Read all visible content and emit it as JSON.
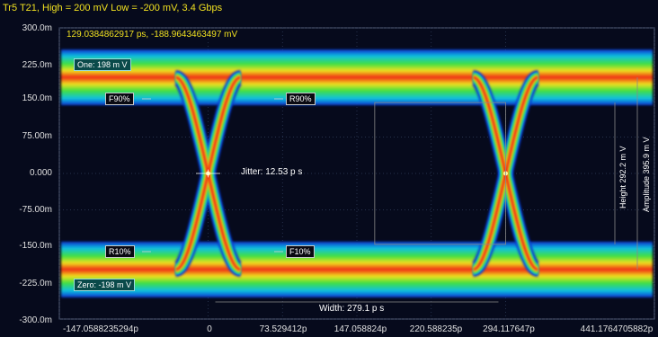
{
  "header": {
    "title": "Tr5 T21, High = 200 mV Low = -200 mV, 3.4 Gbps"
  },
  "cursor_readout": "129.0384862917 ps, -188.9643463497 mV",
  "y_ticks": [
    "300.0m",
    "225.0m",
    "150.0m",
    "75.00m",
    "0.000",
    "-75.00m",
    "-150.0m",
    "-225.0m",
    "-300.0m"
  ],
  "x_ticks": [
    "-147.0588235294p",
    "0",
    "73.529412p",
    "147.058824p",
    "220.588235p",
    "294.117647p",
    "441.1764705882p"
  ],
  "markers": {
    "one": "One: 198 m V",
    "zero": "Zero: -198 m V",
    "f90": "F90%",
    "r90": "R90%",
    "r10": "R10%",
    "f10": "F10%"
  },
  "measurements": {
    "jitter": "Jitter: 12.53 p s",
    "width": "Width: 279.1 p s",
    "height": "Height 292.2 m V",
    "amplitude": "Amplitude 395.9 m V"
  },
  "colors": {
    "background": "#060a1c",
    "title": "#f0e020",
    "grid": "#3a4a6a",
    "tick_text": "#e0e0e0"
  },
  "chart_data": {
    "type": "eye-diagram",
    "title": "Tr5 T21, High = 200 mV Low = -200 mV, 3.4 Gbps",
    "high_mV": 200,
    "low_mV": -200,
    "bit_rate_gbps": 3.4,
    "xlim_ps": [
      -147.0588235294,
      441.1764705882
    ],
    "ylim_mV": [
      -300,
      300
    ],
    "crossings_ps": [
      0,
      294.117647
    ],
    "levels_mV": {
      "one": 198,
      "zero": -198
    },
    "jitter_ps": 12.53,
    "width_ps": 279.1,
    "height_mV": 292.2,
    "amplitude_mV": 395.9,
    "grid": true
  }
}
